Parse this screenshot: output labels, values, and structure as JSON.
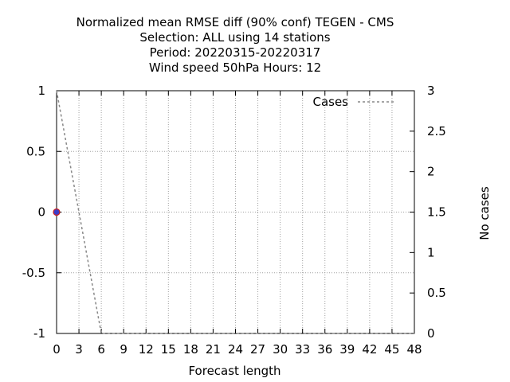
{
  "chart_data": {
    "type": "line",
    "title": [
      "Normalized mean RMSE diff (90% conf) TEGEN - CMS",
      "Selection: ALL using    14 stations",
      "Period: 20220315-20220317",
      "Wind speed 50hPa   Hours:  12"
    ],
    "xlabel": "Forecast length",
    "ylabel": "",
    "y2label": "No cases",
    "xlim": [
      0,
      48
    ],
    "ylim": [
      -1,
      1
    ],
    "y2lim": [
      0,
      3
    ],
    "x_ticks": [
      0,
      3,
      6,
      9,
      12,
      15,
      18,
      21,
      24,
      27,
      30,
      33,
      36,
      39,
      42,
      45,
      48
    ],
    "y_ticks": [
      {
        "value": 1,
        "label": "1"
      },
      {
        "value": 0.5,
        "label": "0.5"
      },
      {
        "value": 0,
        "label": "0"
      },
      {
        "value": -0.5,
        "label": "-0.5"
      },
      {
        "value": -1,
        "label": "-1"
      }
    ],
    "y2_ticks": [
      {
        "value": 3,
        "label": "3"
      },
      {
        "value": 2.5,
        "label": "2.5"
      },
      {
        "value": 2,
        "label": "2"
      },
      {
        "value": 1.5,
        "label": "1.5"
      },
      {
        "value": 1,
        "label": "1"
      },
      {
        "value": 0.5,
        "label": "0.5"
      },
      {
        "value": 0,
        "label": "0"
      }
    ],
    "grid": true,
    "legend_position": "top-right",
    "series": [
      {
        "name": "Cases",
        "axis": "y2",
        "style": "dashed",
        "color": "#888888",
        "x": [
          0,
          6,
          12,
          18,
          24,
          30,
          36,
          42,
          48
        ],
        "y": [
          3,
          0,
          0,
          0,
          0,
          0,
          0,
          0,
          0
        ]
      }
    ],
    "points": [
      {
        "x": 0,
        "y": 0,
        "fill": "#3c3cc8",
        "stroke": "#cc2222"
      }
    ]
  }
}
